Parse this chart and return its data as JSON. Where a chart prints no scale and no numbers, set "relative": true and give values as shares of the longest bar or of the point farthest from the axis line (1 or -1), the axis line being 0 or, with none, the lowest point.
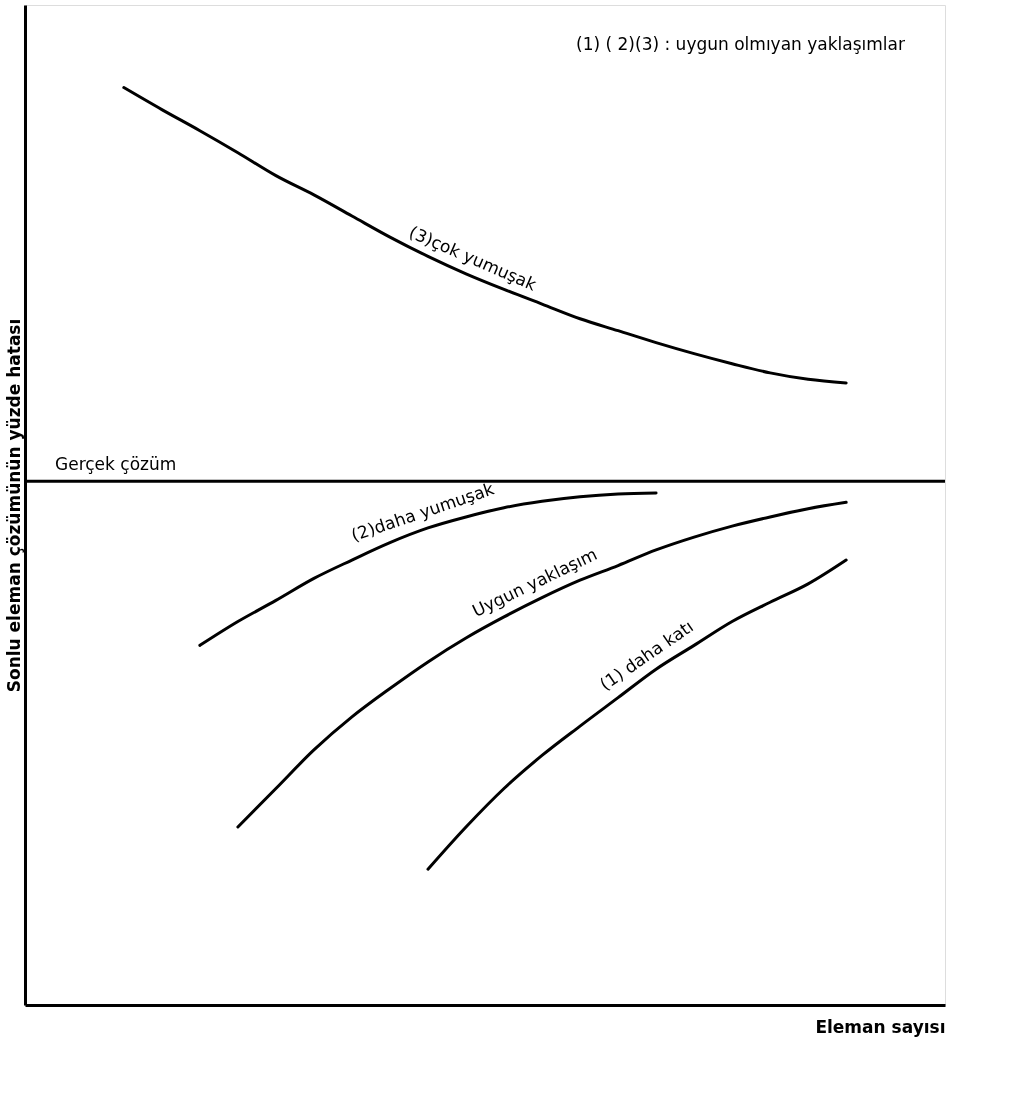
{
  "chart_data": {
    "type": "line",
    "relative": true,
    "xlabel": "Eleman sayısı",
    "ylabel": "Sonlu eleman çözümünün yüzde hatası",
    "annotations": [
      "(1) ( 2)(3) : uygun olmıyan yaklaşımlar"
    ],
    "categories": [
      null,
      null,
      null,
      null,
      null,
      null,
      null,
      null,
      null,
      null,
      null,
      null,
      null,
      null,
      null,
      null,
      null,
      null,
      null,
      null
    ],
    "series": [
      {
        "name": "(3)çok yumuşak",
        "color": "#000000",
        "values": [
          1,
          0.976,
          0.953,
          0.929,
          0.904,
          0.883,
          0.86,
          0.837,
          0.816,
          0.797,
          0.78,
          0.764,
          0.748,
          0.735,
          0.722,
          0.71,
          0.699,
          0.689,
          0.682,
          0.678
        ]
      },
      {
        "name": "(2)daha yumuşak",
        "color": "#000000",
        "values": [
          null,
          null,
          0.392,
          0.418,
          0.441,
          0.465,
          0.485,
          0.504,
          0.52,
          0.532,
          0.542,
          0.549,
          0.554,
          0.557,
          0.558,
          null,
          null,
          null,
          null,
          null
        ]
      },
      {
        "name": "Uygun yaklaşım",
        "color": "#000000",
        "values": [
          null,
          null,
          null,
          0.194,
          0.236,
          0.278,
          0.314,
          0.345,
          0.374,
          0.4,
          0.423,
          0.444,
          0.463,
          0.479,
          0.496,
          0.51,
          0.522,
          0.532,
          0.541,
          0.548
        ]
      },
      {
        "name": "(1) daha katı",
        "color": "#000000",
        "values": [
          null,
          null,
          null,
          null,
          null,
          null,
          null,
          null,
          0.148,
          0.194,
          0.236,
          0.272,
          0.304,
          0.335,
          0.366,
          0.392,
          0.418,
          0.439,
          0.459,
          0.485
        ]
      }
    ],
    "ref_lines": [
      {
        "axis": "y",
        "value": 0.571,
        "label": "Gerçek çözüm",
        "color": "#000000",
        "line_style": "solid"
      }
    ],
    "legend": false,
    "marker": "none",
    "line_style": "solid",
    "grid": false,
    "tick_labels": false
  }
}
